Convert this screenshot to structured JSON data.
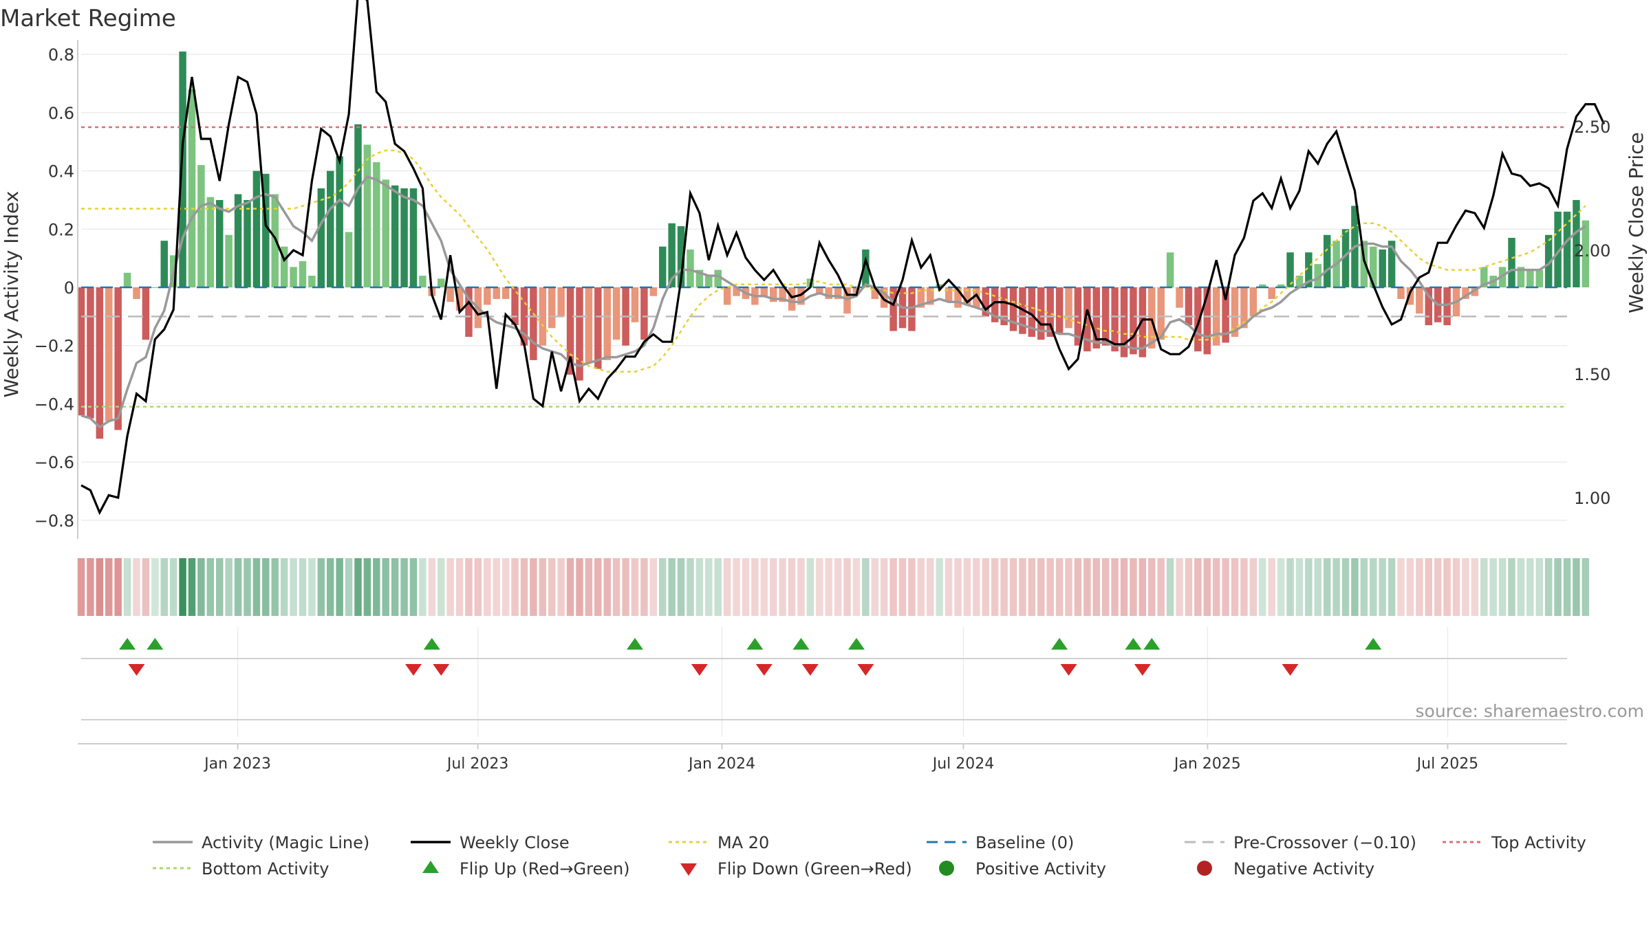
{
  "title": "Market Regime",
  "source": "source: sharemaestro.com",
  "colors": {
    "pos_strong": "#2e8b57",
    "pos_light": "#7cc47f",
    "neg_strong": "#cd5c5c",
    "neg_light": "#e9967a",
    "magic": "#999999",
    "close": "#000000",
    "ma20": "#e8d034",
    "baseline": "#1f77b4",
    "precross": "#bbbbbb",
    "top": "#e06c75",
    "bottom": "#a6d96a",
    "flip_up": "#2ca02c",
    "flip_down": "#d62728",
    "pos_dot": "#228b22",
    "neg_dot": "#b22222"
  },
  "chart_data": {
    "type": "bar",
    "title": "Market Regime",
    "ylabel": "Weekly Activity Index",
    "y2label": "Weekly Close Price",
    "ylim": [
      -0.85,
      0.85
    ],
    "y2lim": [
      0.85,
      2.85
    ],
    "yticks": [
      0.8,
      0.6,
      0.4,
      0.2,
      0,
      -0.2,
      -0.4,
      -0.6,
      -0.8
    ],
    "ytick_labels": [
      "0.8",
      "0.6",
      "0.4",
      "0.2",
      "0",
      "−0.2",
      "−0.4",
      "−0.6",
      "−0.8"
    ],
    "y2ticks": [
      2.5,
      2.0,
      1.5,
      1.0
    ],
    "y2tick_labels": [
      "2.50",
      "2.00",
      "1.50",
      "1.00"
    ],
    "x_start": "2022-09-05",
    "x_end": "2025-09-29",
    "week_count": 162,
    "xticks": [
      "2023-01-01",
      "2023-07-01",
      "2024-01-01",
      "2024-07-01",
      "2025-01-01",
      "2025-07-01"
    ],
    "xtick_labels": [
      "Jan 2023",
      "Jul 2023",
      "Jan 2024",
      "Jul 2024",
      "Jan 2025",
      "Jul 2025"
    ],
    "grid": true,
    "legend_position": "bottom",
    "activity": [
      -0.44,
      -0.45,
      -0.52,
      -0.46,
      -0.49,
      0.05,
      -0.04,
      -0.18,
      0.0,
      0.16,
      0.11,
      0.81,
      0.68,
      0.42,
      0.31,
      0.3,
      0.18,
      0.32,
      0.3,
      0.4,
      0.39,
      0.32,
      0.14,
      0.07,
      0.09,
      0.04,
      0.34,
      0.4,
      0.45,
      0.19,
      0.56,
      0.49,
      0.43,
      0.37,
      0.35,
      0.34,
      0.34,
      0.04,
      -0.03,
      0.03,
      -0.05,
      -0.08,
      -0.17,
      -0.14,
      -0.06,
      -0.04,
      -0.04,
      -0.13,
      -0.2,
      -0.25,
      -0.2,
      -0.14,
      -0.1,
      -0.3,
      -0.32,
      -0.26,
      -0.28,
      -0.25,
      -0.18,
      -0.2,
      -0.12,
      -0.18,
      -0.03,
      0.14,
      0.22,
      0.21,
      0.13,
      0.06,
      0.04,
      0.06,
      -0.06,
      -0.03,
      -0.04,
      -0.06,
      -0.03,
      -0.05,
      -0.05,
      -0.08,
      -0.06,
      0.03,
      -0.02,
      -0.04,
      -0.04,
      -0.09,
      -0.02,
      0.13,
      -0.04,
      -0.07,
      -0.15,
      -0.14,
      -0.15,
      -0.07,
      -0.06,
      0.01,
      -0.05,
      -0.07,
      -0.06,
      -0.07,
      -0.1,
      -0.12,
      -0.13,
      -0.15,
      -0.16,
      -0.17,
      -0.18,
      -0.17,
      -0.16,
      -0.14,
      -0.2,
      -0.22,
      -0.21,
      -0.2,
      -0.22,
      -0.24,
      -0.23,
      -0.24,
      -0.21,
      -0.18,
      0.12,
      -0.07,
      -0.13,
      -0.22,
      -0.23,
      -0.2,
      -0.19,
      -0.17,
      -0.14,
      -0.1,
      0.01,
      -0.04,
      0.01,
      0.12,
      0.04,
      0.12,
      0.08,
      0.18,
      0.16,
      0.2,
      0.28,
      0.16,
      0.14,
      0.13,
      0.16,
      -0.04,
      -0.06,
      -0.09,
      -0.13,
      -0.12,
      -0.13,
      -0.1,
      -0.04,
      -0.03,
      0.07,
      0.04,
      0.07,
      0.17,
      0.07,
      0.06,
      0.06,
      0.18,
      0.26,
      0.26,
      0.3,
      0.23
    ],
    "magic_line": [
      -0.44,
      -0.45,
      -0.48,
      -0.46,
      -0.45,
      -0.35,
      -0.26,
      -0.24,
      -0.14,
      -0.08,
      0.05,
      0.17,
      0.24,
      0.28,
      0.29,
      0.27,
      0.26,
      0.28,
      0.29,
      0.31,
      0.32,
      0.31,
      0.26,
      0.21,
      0.19,
      0.16,
      0.22,
      0.27,
      0.3,
      0.28,
      0.34,
      0.38,
      0.37,
      0.35,
      0.33,
      0.31,
      0.3,
      0.28,
      0.22,
      0.16,
      0.06,
      0.01,
      -0.04,
      -0.07,
      -0.1,
      -0.12,
      -0.13,
      -0.14,
      -0.16,
      -0.19,
      -0.21,
      -0.22,
      -0.23,
      -0.26,
      -0.27,
      -0.26,
      -0.25,
      -0.24,
      -0.24,
      -0.23,
      -0.22,
      -0.2,
      -0.14,
      -0.04,
      0.03,
      0.06,
      0.06,
      0.05,
      0.04,
      0.04,
      0.02,
      0.0,
      -0.02,
      -0.03,
      -0.03,
      -0.04,
      -0.04,
      -0.05,
      -0.05,
      -0.03,
      -0.02,
      -0.03,
      -0.03,
      -0.04,
      -0.03,
      0.01,
      0.0,
      -0.02,
      -0.05,
      -0.07,
      -0.07,
      -0.06,
      -0.05,
      -0.04,
      -0.05,
      -0.05,
      -0.06,
      -0.07,
      -0.08,
      -0.1,
      -0.11,
      -0.12,
      -0.13,
      -0.14,
      -0.15,
      -0.15,
      -0.16,
      -0.16,
      -0.17,
      -0.18,
      -0.19,
      -0.19,
      -0.2,
      -0.2,
      -0.21,
      -0.21,
      -0.19,
      -0.17,
      -0.12,
      -0.11,
      -0.13,
      -0.16,
      -0.17,
      -0.16,
      -0.16,
      -0.15,
      -0.13,
      -0.1,
      -0.08,
      -0.07,
      -0.05,
      -0.02,
      0.0,
      0.02,
      0.03,
      0.06,
      0.08,
      0.11,
      0.14,
      0.15,
      0.15,
      0.14,
      0.14,
      0.09,
      0.06,
      0.02,
      -0.03,
      -0.06,
      -0.06,
      -0.05,
      -0.03,
      -0.01,
      0.01,
      0.02,
      0.04,
      0.06,
      0.06,
      0.06,
      0.06,
      0.08,
      0.12,
      0.16,
      0.19,
      0.21
    ],
    "weekly_close": [
      1.05,
      1.03,
      0.94,
      1.01,
      1.0,
      1.25,
      1.42,
      1.39,
      1.64,
      1.68,
      1.76,
      2.43,
      2.7,
      2.45,
      2.45,
      2.28,
      2.51,
      2.7,
      2.68,
      2.55,
      2.1,
      2.05,
      1.96,
      2.0,
      1.98,
      2.28,
      2.49,
      2.46,
      2.36,
      2.55,
      3.04,
      3.01,
      2.64,
      2.6,
      2.43,
      2.4,
      2.33,
      2.25,
      1.82,
      1.72,
      1.98,
      1.75,
      1.79,
      1.74,
      1.75,
      1.44,
      1.74,
      1.7,
      1.62,
      1.4,
      1.37,
      1.59,
      1.43,
      1.57,
      1.39,
      1.44,
      1.4,
      1.48,
      1.52,
      1.57,
      1.57,
      1.63,
      1.66,
      1.63,
      1.63,
      1.88,
      2.23,
      2.15,
      1.96,
      2.1,
      1.98,
      2.07,
      1.97,
      1.92,
      1.88,
      1.92,
      1.86,
      1.81,
      1.82,
      1.85,
      2.03,
      1.96,
      1.9,
      1.82,
      1.82,
      1.96,
      1.85,
      1.8,
      1.78,
      1.88,
      2.04,
      1.93,
      1.98,
      1.84,
      1.88,
      1.84,
      1.79,
      1.82,
      1.76,
      1.79,
      1.79,
      1.78,
      1.76,
      1.74,
      1.7,
      1.7,
      1.6,
      1.52,
      1.56,
      1.76,
      1.64,
      1.64,
      1.62,
      1.62,
      1.65,
      1.72,
      1.72,
      1.6,
      1.58,
      1.58,
      1.61,
      1.7,
      1.82,
      1.96,
      1.8,
      1.98,
      2.05,
      2.2,
      2.23,
      2.17,
      2.29,
      2.17,
      2.24,
      2.4,
      2.35,
      2.43,
      2.48,
      2.36,
      2.24,
      1.96,
      1.86,
      1.77,
      1.7,
      1.72,
      1.83,
      1.89,
      1.91,
      2.03,
      2.03,
      2.1,
      2.16,
      2.15,
      2.09,
      2.22,
      2.39,
      2.31,
      2.3,
      2.26,
      2.27,
      2.25,
      2.18,
      2.41,
      2.54,
      2.59,
      2.59,
      2.51
    ],
    "ma20": [
      0.27,
      0.27,
      0.27,
      0.27,
      0.27,
      0.27,
      0.27,
      0.27,
      0.27,
      0.27,
      0.27,
      0.27,
      0.27,
      0.27,
      0.27,
      0.27,
      0.27,
      0.27,
      0.27,
      0.27,
      0.27,
      0.27,
      0.27,
      0.27,
      0.28,
      0.29,
      0.3,
      0.31,
      0.33,
      0.36,
      0.4,
      0.44,
      0.46,
      0.47,
      0.47,
      0.46,
      0.44,
      0.4,
      0.35,
      0.31,
      0.28,
      0.25,
      0.21,
      0.17,
      0.13,
      0.08,
      0.03,
      -0.01,
      -0.05,
      -0.09,
      -0.13,
      -0.17,
      -0.2,
      -0.23,
      -0.25,
      -0.27,
      -0.28,
      -0.29,
      -0.29,
      -0.29,
      -0.29,
      -0.28,
      -0.27,
      -0.24,
      -0.2,
      -0.15,
      -0.1,
      -0.06,
      -0.03,
      -0.01,
      0.0,
      0.01,
      0.01,
      0.01,
      0.01,
      0.01,
      0.01,
      0.01,
      0.01,
      0.02,
      0.02,
      0.01,
      0.01,
      0.01,
      0.0,
      0.0,
      -0.01,
      -0.01,
      -0.02,
      -0.02,
      -0.02,
      -0.01,
      -0.01,
      -0.01,
      -0.01,
      -0.01,
      -0.01,
      -0.01,
      -0.02,
      -0.03,
      -0.04,
      -0.05,
      -0.06,
      -0.07,
      -0.08,
      -0.09,
      -0.1,
      -0.11,
      -0.12,
      -0.13,
      -0.14,
      -0.15,
      -0.15,
      -0.16,
      -0.16,
      -0.17,
      -0.17,
      -0.17,
      -0.17,
      -0.17,
      -0.18,
      -0.18,
      -0.18,
      -0.17,
      -0.16,
      -0.14,
      -0.12,
      -0.1,
      -0.07,
      -0.05,
      -0.02,
      0.01,
      0.04,
      0.07,
      0.1,
      0.13,
      0.16,
      0.19,
      0.21,
      0.22,
      0.22,
      0.21,
      0.19,
      0.16,
      0.13,
      0.1,
      0.08,
      0.07,
      0.06,
      0.06,
      0.06,
      0.06,
      0.07,
      0.08,
      0.09,
      0.1,
      0.11,
      0.12,
      0.14,
      0.16,
      0.19,
      0.22,
      0.25,
      0.28
    ],
    "baseline": 0,
    "pre_crossover": -0.1,
    "top_activity": 0.55,
    "bottom_activity": -0.41,
    "flip_up_weeks": [
      5,
      8,
      38,
      60,
      73,
      78,
      84,
      106,
      114,
      116,
      140
    ],
    "flip_down_weeks": [
      6,
      36,
      39,
      67,
      74,
      79,
      85,
      107,
      115,
      131
    ]
  },
  "legend": [
    {
      "label": "Activity (Magic Line)",
      "marker": "line",
      "color": "#999999"
    },
    {
      "label": "Weekly Close",
      "marker": "line",
      "color": "#000000"
    },
    {
      "label": "MA 20",
      "marker": "dotted",
      "color": "#e8d034"
    },
    {
      "label": "Baseline (0)",
      "marker": "dashed",
      "color": "#1f77b4"
    },
    {
      "label": "Pre-Crossover (−0.10)",
      "marker": "dashed",
      "color": "#bbbbbb"
    },
    {
      "label": "Top Activity",
      "marker": "dotted",
      "color": "#e06c75"
    },
    {
      "label": "Bottom Activity",
      "marker": "dotted",
      "color": "#a6d96a"
    },
    {
      "label": "Flip Up (Red→Green)",
      "marker": "triangle-up",
      "color": "#2ca02c"
    },
    {
      "label": "Flip Down (Green→Red)",
      "marker": "triangle-down",
      "color": "#d62728"
    },
    {
      "label": "Positive Activity",
      "marker": "dot",
      "color": "#228b22"
    },
    {
      "label": "Negative Activity",
      "marker": "dot",
      "color": "#b22222"
    }
  ]
}
